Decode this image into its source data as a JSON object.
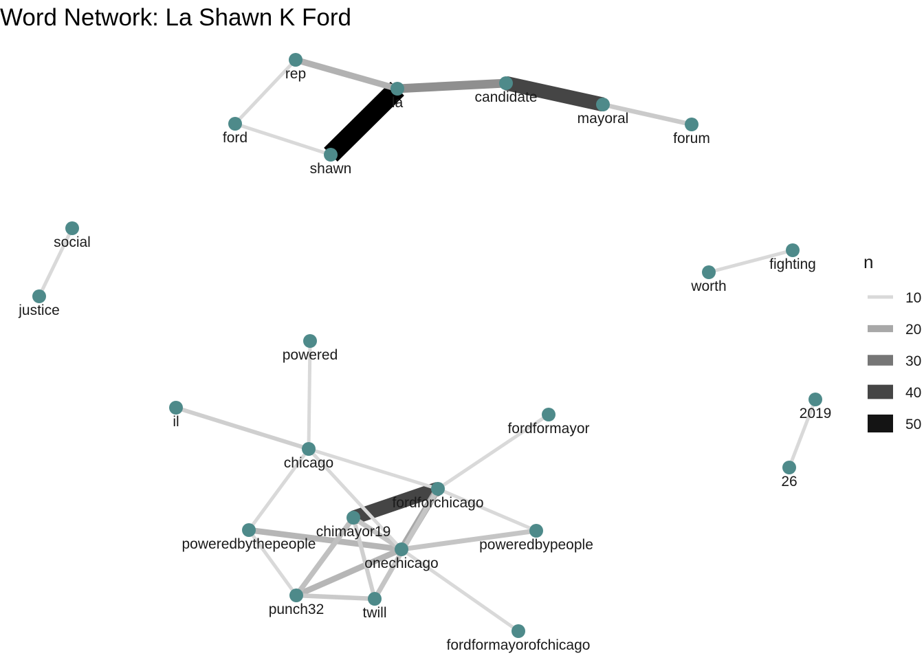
{
  "title": "Word Network: La Shawn K Ford",
  "colors": {
    "node": "#4e8a8a",
    "label": "#1a1a1a",
    "edge_light": "#d9d9d9",
    "edge_dark": "#000000"
  },
  "nodes": [
    {
      "id": "la",
      "label": "la"
    },
    {
      "id": "rep",
      "label": "rep"
    },
    {
      "id": "ford",
      "label": "ford"
    },
    {
      "id": "shawn",
      "label": "shawn"
    },
    {
      "id": "candidate",
      "label": "candidate"
    },
    {
      "id": "mayoral",
      "label": "mayoral"
    },
    {
      "id": "forum",
      "label": "forum"
    },
    {
      "id": "social",
      "label": "social"
    },
    {
      "id": "justice",
      "label": "justice"
    },
    {
      "id": "fighting",
      "label": "fighting"
    },
    {
      "id": "worth",
      "label": "worth"
    },
    {
      "id": "powered",
      "label": "powered"
    },
    {
      "id": "il",
      "label": "il"
    },
    {
      "id": "chicago",
      "label": "chicago"
    },
    {
      "id": "fordformayor",
      "label": "fordformayor"
    },
    {
      "id": "fordforchicago",
      "label": "fordforchicago"
    },
    {
      "id": "chimayor19",
      "label": "chimayor19"
    },
    {
      "id": "poweredbythepeople",
      "label": "poweredbythepeople"
    },
    {
      "id": "onechicago",
      "label": "onechicago"
    },
    {
      "id": "poweredbypeople",
      "label": "poweredbypeople"
    },
    {
      "id": "punch32",
      "label": "punch32"
    },
    {
      "id": "twill",
      "label": "twill"
    },
    {
      "id": "fordformayorofchicago",
      "label": "fordformayorofchicago"
    },
    {
      "id": "2019",
      "label": "2019"
    },
    {
      "id": "26",
      "label": "26"
    }
  ],
  "edges": [
    {
      "source": "shawn",
      "target": "la",
      "n": 54
    },
    {
      "source": "candidate",
      "target": "mayoral",
      "n": 40
    },
    {
      "source": "fordforchicago",
      "target": "chimayor19",
      "n": 40
    },
    {
      "source": "la",
      "target": "candidate",
      "n": 25
    },
    {
      "source": "rep",
      "target": "la",
      "n": 18
    },
    {
      "source": "onechicago",
      "target": "fordforchicago",
      "n": 20
    },
    {
      "source": "poweredbythepeople",
      "target": "onechicago",
      "n": 17
    },
    {
      "source": "onechicago",
      "target": "poweredbypeople",
      "n": 14
    },
    {
      "source": "punch32",
      "target": "onechicago",
      "n": 17
    },
    {
      "source": "punch32",
      "target": "chimayor19",
      "n": 15
    },
    {
      "source": "punch32",
      "target": "twill",
      "n": 13
    },
    {
      "source": "chimayor19",
      "target": "twill",
      "n": 12
    },
    {
      "source": "twill",
      "target": "fordforchicago",
      "n": 14
    },
    {
      "source": "chimayor19",
      "target": "onechicago",
      "n": 14
    },
    {
      "source": "mayoral",
      "target": "forum",
      "n": 13
    },
    {
      "source": "il",
      "target": "chicago",
      "n": 12
    },
    {
      "source": "rep",
      "target": "ford",
      "n": 10
    },
    {
      "source": "ford",
      "target": "shawn",
      "n": 10
    },
    {
      "source": "social",
      "target": "justice",
      "n": 10
    },
    {
      "source": "worth",
      "target": "fighting",
      "n": 10
    },
    {
      "source": "powered",
      "target": "chicago",
      "n": 10
    },
    {
      "source": "chicago",
      "target": "fordforchicago",
      "n": 10
    },
    {
      "source": "chicago",
      "target": "poweredbythepeople",
      "n": 10
    },
    {
      "source": "chicago",
      "target": "onechicago",
      "n": 10
    },
    {
      "source": "fordformayor",
      "target": "fordforchicago",
      "n": 10
    },
    {
      "source": "fordforchicago",
      "target": "poweredbypeople",
      "n": 10
    },
    {
      "source": "poweredbythepeople",
      "target": "punch32",
      "n": 10
    },
    {
      "source": "onechicago",
      "target": "fordformayorofchicago",
      "n": 10
    },
    {
      "source": "2019",
      "target": "26",
      "n": 10
    }
  ],
  "legend": {
    "title": "n",
    "entries": [
      {
        "label": "10",
        "n": 10
      },
      {
        "label": "20",
        "n": 20
      },
      {
        "label": "30",
        "n": 30
      },
      {
        "label": "40",
        "n": 40
      },
      {
        "label": "50",
        "n": 50
      }
    ],
    "n_range": [
      10,
      54
    ]
  }
}
